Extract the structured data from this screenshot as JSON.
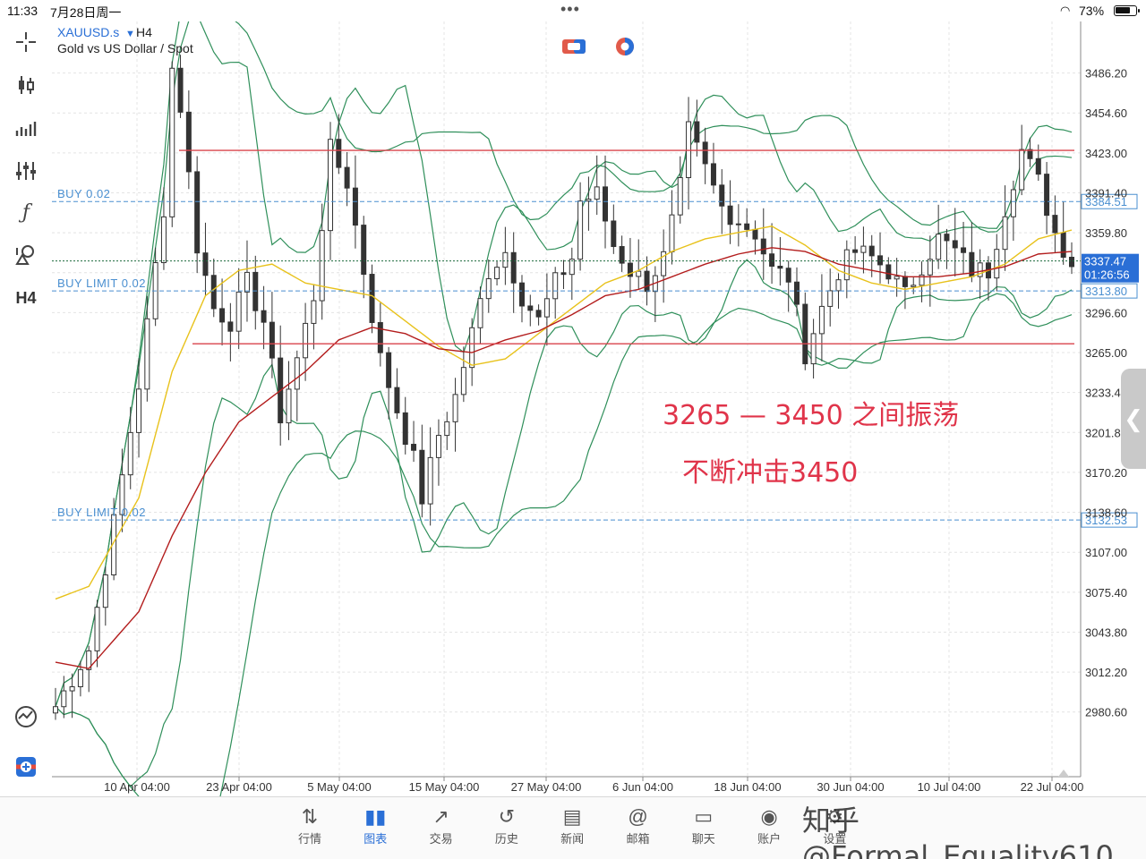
{
  "status_bar": {
    "time": "11:33",
    "date": "7月28日周一",
    "battery": "73%",
    "battery_level": 0.73
  },
  "toolbar": {
    "timeframe": "H4"
  },
  "symbol": {
    "name": "XAUUSD.s",
    "timeframe": "H4",
    "description": "Gold vs US Dollar / Spot"
  },
  "order_lines": [
    {
      "label": "BUY 0.02",
      "price": 3384.51
    },
    {
      "label": "BUY LIMIT 0.02",
      "price": 3313.8
    },
    {
      "label": "BUY LIMIT 0.02",
      "price": 3132.53
    }
  ],
  "current_price": {
    "value": "3337.47",
    "countdown": "01:26:56"
  },
  "annotations": [
    "3265 — 3450 之间振荡",
    "不断冲击3450"
  ],
  "tabs": [
    {
      "label": "行情",
      "icon": "quotes-icon"
    },
    {
      "label": "图表",
      "icon": "chart-icon",
      "active": true
    },
    {
      "label": "交易",
      "icon": "trade-icon"
    },
    {
      "label": "历史",
      "icon": "history-icon"
    },
    {
      "label": "新闻",
      "icon": "news-icon"
    },
    {
      "label": "邮箱",
      "icon": "mail-icon"
    },
    {
      "label": "聊天",
      "icon": "chat-icon"
    },
    {
      "label": "账户",
      "icon": "account-icon"
    },
    {
      "label": "设置",
      "icon": "settings-icon"
    }
  ],
  "watermark": "知乎 @Formal_Equality610",
  "chart_data": {
    "type": "candlestick",
    "y_ticks": [
      "3486.20",
      "3454.60",
      "3423.00",
      "3391.40",
      "3359.80",
      "3328.20",
      "3296.60",
      "3265.00",
      "3233.40",
      "3201.80",
      "3170.20",
      "3138.60",
      "3107.00",
      "3075.40",
      "3043.80",
      "3012.20",
      "2980.60"
    ],
    "x_ticks": [
      "10 Apr 04:00",
      "23 Apr 04:00",
      "5 May 04:00",
      "15 May 04:00",
      "27 May 04:00",
      "6 Jun 04:00",
      "18 Jun 04:00",
      "30 Jun 04:00",
      "10 Jul 04:00",
      "22 Jul 04:00"
    ],
    "ylim": [
      2945,
      3510
    ],
    "horizontal_lines": [
      {
        "price": 3425.0,
        "color": "#d9434b",
        "style": "solid"
      },
      {
        "price": 3272.0,
        "color": "#d9434b",
        "style": "solid"
      }
    ],
    "price_path": [
      [
        0,
        2985
      ],
      [
        4,
        3030
      ],
      [
        7,
        3130
      ],
      [
        10,
        3240
      ],
      [
        13,
        3380
      ],
      [
        14,
        3490
      ],
      [
        15,
        3460
      ],
      [
        17,
        3350
      ],
      [
        19,
        3300
      ],
      [
        21,
        3290
      ],
      [
        23,
        3320
      ],
      [
        25,
        3290
      ],
      [
        27,
        3215
      ],
      [
        29,
        3260
      ],
      [
        31,
        3310
      ],
      [
        33,
        3425
      ],
      [
        35,
        3400
      ],
      [
        37,
        3330
      ],
      [
        39,
        3260
      ],
      [
        41,
        3220
      ],
      [
        43,
        3180
      ],
      [
        44,
        3150
      ],
      [
        46,
        3200
      ],
      [
        48,
        3230
      ],
      [
        50,
        3280
      ],
      [
        52,
        3330
      ],
      [
        54,
        3345
      ],
      [
        56,
        3310
      ],
      [
        58,
        3290
      ],
      [
        60,
        3320
      ],
      [
        62,
        3340
      ],
      [
        63,
        3385
      ],
      [
        65,
        3390
      ],
      [
        67,
        3350
      ],
      [
        69,
        3330
      ],
      [
        71,
        3320
      ],
      [
        73,
        3340
      ],
      [
        75,
        3395
      ],
      [
        76,
        3440
      ],
      [
        78,
        3410
      ],
      [
        80,
        3380
      ],
      [
        82,
        3370
      ],
      [
        84,
        3360
      ],
      [
        86,
        3330
      ],
      [
        88,
        3325
      ],
      [
        90,
        3265
      ],
      [
        92,
        3300
      ],
      [
        94,
        3330
      ],
      [
        96,
        3345
      ],
      [
        98,
        3340
      ],
      [
        100,
        3330
      ],
      [
        102,
        3310
      ],
      [
        104,
        3335
      ],
      [
        106,
        3355
      ],
      [
        108,
        3345
      ],
      [
        110,
        3330
      ],
      [
        112,
        3330
      ],
      [
        114,
        3380
      ],
      [
        116,
        3425
      ],
      [
        118,
        3400
      ],
      [
        120,
        3360
      ],
      [
        122,
        3337
      ]
    ],
    "moving_averages": [
      {
        "color": "#e8c21b",
        "points": [
          [
            0,
            3070
          ],
          [
            4,
            3080
          ],
          [
            10,
            3150
          ],
          [
            14,
            3250
          ],
          [
            18,
            3310
          ],
          [
            22,
            3330
          ],
          [
            26,
            3335
          ],
          [
            30,
            3320
          ],
          [
            34,
            3315
          ],
          [
            38,
            3310
          ],
          [
            42,
            3290
          ],
          [
            46,
            3270
          ],
          [
            50,
            3255
          ],
          [
            54,
            3260
          ],
          [
            58,
            3280
          ],
          [
            62,
            3300
          ],
          [
            66,
            3320
          ],
          [
            70,
            3330
          ],
          [
            74,
            3345
          ],
          [
            78,
            3355
          ],
          [
            82,
            3360
          ],
          [
            86,
            3365
          ],
          [
            90,
            3350
          ],
          [
            94,
            3330
          ],
          [
            98,
            3320
          ],
          [
            102,
            3315
          ],
          [
            106,
            3320
          ],
          [
            110,
            3325
          ],
          [
            114,
            3335
          ],
          [
            118,
            3355
          ],
          [
            122,
            3362
          ]
        ]
      },
      {
        "color": "#b31d1d",
        "points": [
          [
            0,
            3020
          ],
          [
            4,
            3015
          ],
          [
            10,
            3060
          ],
          [
            14,
            3120
          ],
          [
            18,
            3170
          ],
          [
            22,
            3210
          ],
          [
            26,
            3230
          ],
          [
            30,
            3250
          ],
          [
            34,
            3275
          ],
          [
            38,
            3285
          ],
          [
            42,
            3280
          ],
          [
            46,
            3268
          ],
          [
            50,
            3265
          ],
          [
            54,
            3275
          ],
          [
            58,
            3282
          ],
          [
            62,
            3295
          ],
          [
            66,
            3310
          ],
          [
            70,
            3315
          ],
          [
            74,
            3325
          ],
          [
            78,
            3335
          ],
          [
            82,
            3343
          ],
          [
            86,
            3348
          ],
          [
            90,
            3345
          ],
          [
            94,
            3335
          ],
          [
            98,
            3330
          ],
          [
            102,
            3325
          ],
          [
            106,
            3325
          ],
          [
            110,
            3328
          ],
          [
            114,
            3333
          ],
          [
            118,
            3343
          ],
          [
            122,
            3345
          ]
        ]
      }
    ]
  }
}
